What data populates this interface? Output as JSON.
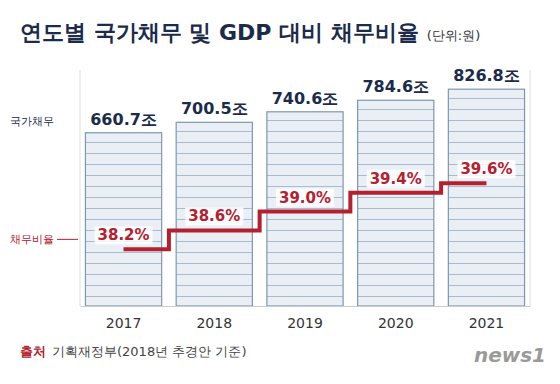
{
  "chart_data": {
    "type": "bar",
    "title": "연도별 국가채무 및 GDP 대비 채무비율",
    "subtitle": "(단위:원)",
    "categories": [
      "2017",
      "2018",
      "2019",
      "2020",
      "2021"
    ],
    "series": [
      {
        "name": "국가채무",
        "type": "bar",
        "color": "#7f97ad",
        "values": [
          660.7,
          700.5,
          740.6,
          784.6,
          826.8
        ],
        "value_labels": [
          "660.7조",
          "700.5조",
          "740.6조",
          "784.6조",
          "826.8조"
        ]
      },
      {
        "name": "채무비율",
        "type": "line",
        "axis": "y2",
        "color": "#b5202e",
        "line_style": "step",
        "values": [
          38.2,
          38.6,
          39.0,
          39.4,
          39.6
        ],
        "value_labels": [
          "38.2%",
          "38.6%",
          "39.0%",
          "39.4%",
          "39.6%"
        ]
      }
    ],
    "ylim": [
      0,
      900
    ],
    "y2lim": [
      37,
      42
    ],
    "data_labels": true,
    "tick_labels": "x",
    "legend": "left",
    "source_label": "출처",
    "source": "기획재정부(2018년 추경안 기준)",
    "logo": "news1"
  }
}
